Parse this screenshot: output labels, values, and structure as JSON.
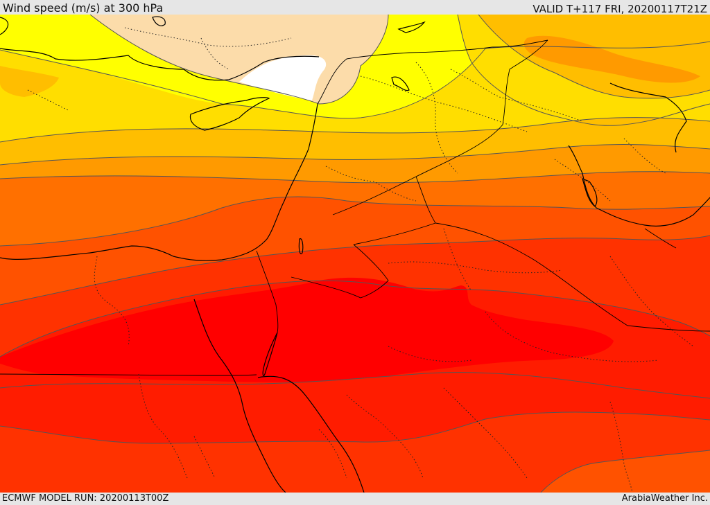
{
  "header": {
    "title": "Wind speed (m/s) at 300 hPa",
    "valid": "VALID T+117 FRI, 20200117T21Z"
  },
  "footer": {
    "model_run": "ECMWF MODEL RUN: 20200113T00Z",
    "credit": "ArabiaWeather Inc."
  },
  "colors": {
    "bands": [
      "#ffffff",
      "#fcdcaa",
      "#ffff00",
      "#ffde00",
      "#ffbe00",
      "#ff9a00",
      "#ff7000",
      "#ff5200",
      "#ff3200",
      "#ff1c00",
      "#ff0000"
    ],
    "contour_line": "#555555",
    "boundary_line": "#000000"
  },
  "map": {
    "field": "wind speed",
    "level": "300 hPa",
    "units": "m/s"
  }
}
